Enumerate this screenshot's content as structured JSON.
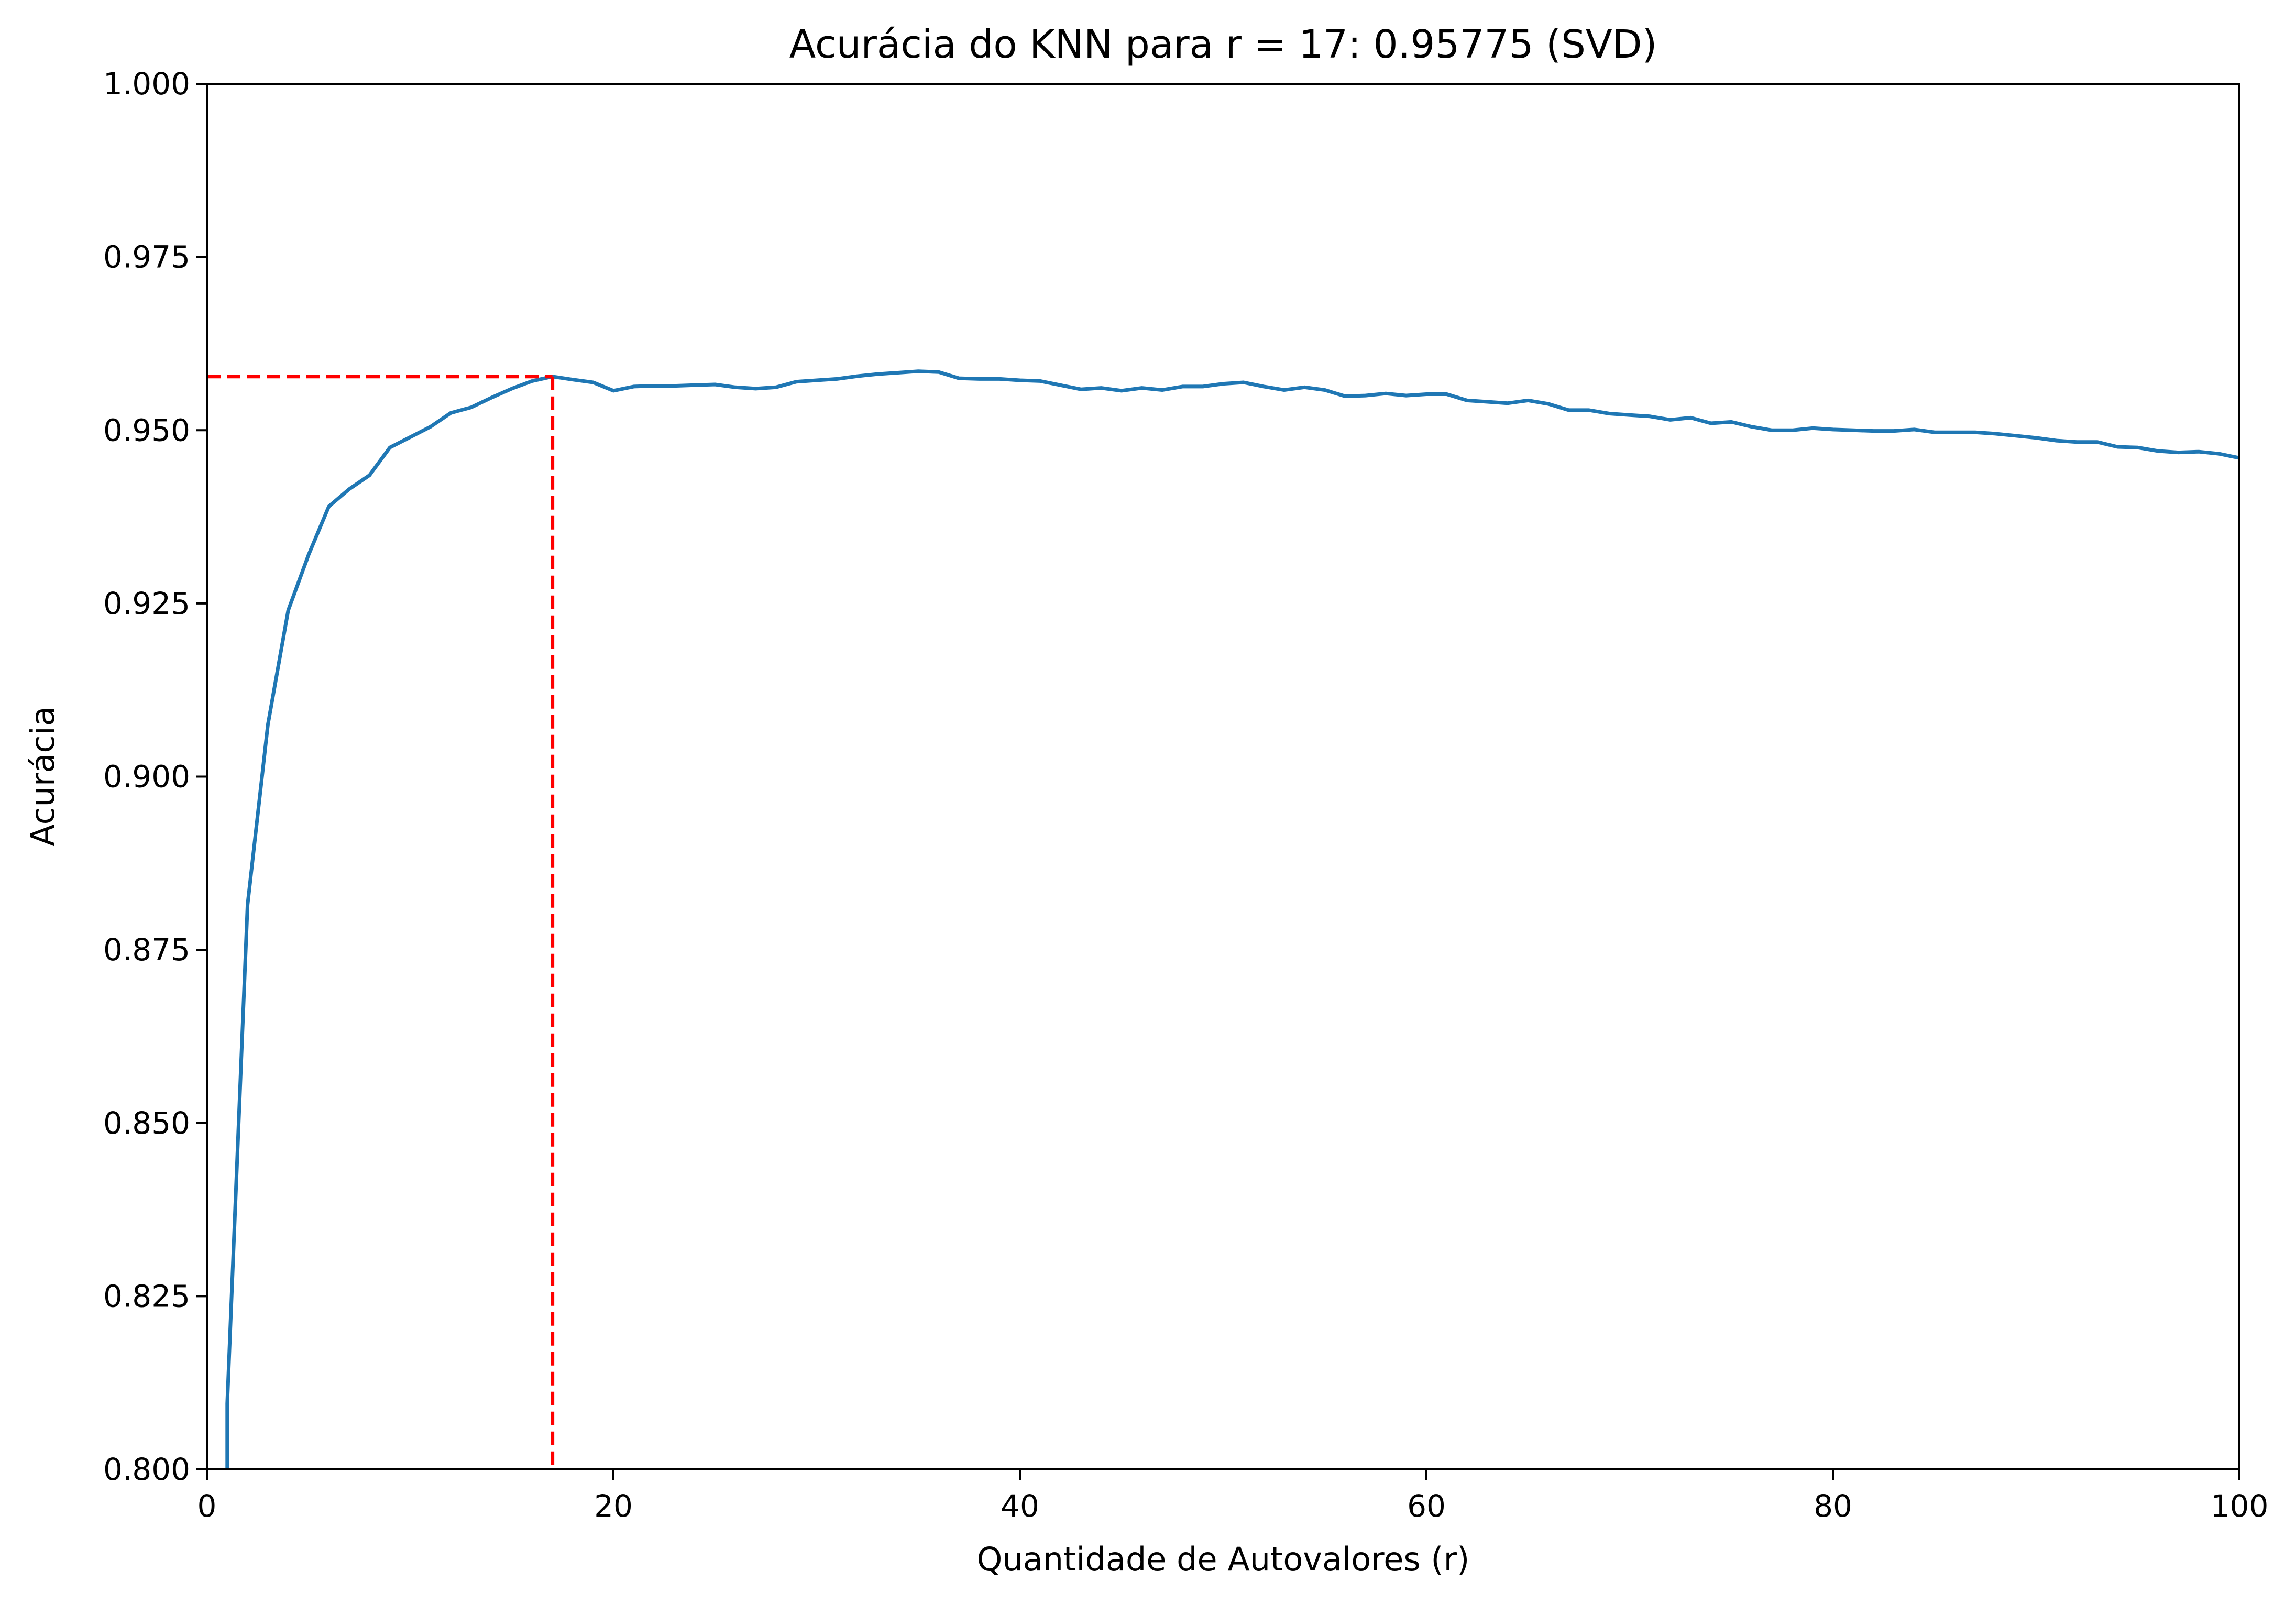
{
  "chart_data": {
    "type": "line",
    "title": "Acurácia do KNN para r = 17: 0.95775 (SVD)",
    "xlabel": "Quantidade de Autovalores (r)",
    "ylabel": "Acurácia",
    "xlim": [
      0,
      100
    ],
    "ylim": [
      0.8,
      1.0
    ],
    "xticks": [
      "0",
      "20",
      "40",
      "60",
      "80",
      "100"
    ],
    "yticks": [
      "0.800",
      "0.825",
      "0.850",
      "0.875",
      "0.900",
      "0.925",
      "0.950",
      "0.975",
      "1.000"
    ],
    "grid": false,
    "colors": {
      "series": "#1f77b4",
      "marker_line": "#ff0000"
    },
    "highlight": {
      "x": 17,
      "y": 0.95775,
      "style": "dashed"
    },
    "series": [
      {
        "x": [
          1,
          2,
          3,
          4,
          5,
          6,
          7,
          8,
          9,
          10,
          11,
          12,
          13,
          14,
          15,
          16,
          17,
          18,
          19,
          20,
          21,
          22,
          23,
          24,
          25,
          26,
          27,
          28,
          29,
          30,
          31,
          32,
          33,
          34,
          35,
          36,
          37,
          38,
          39,
          40,
          41,
          42,
          43,
          44,
          45,
          46,
          47,
          48,
          49,
          50,
          51,
          52,
          53,
          54,
          55,
          56,
          57,
          58,
          59,
          60,
          61,
          62,
          63,
          64,
          65,
          66,
          67,
          68,
          69,
          70,
          71,
          72,
          73,
          74,
          75,
          76,
          77,
          78,
          79,
          80,
          81,
          82,
          83,
          84,
          85,
          86,
          87,
          88,
          89,
          90,
          91,
          92,
          93,
          94,
          95,
          96,
          97,
          98,
          99,
          100
        ],
        "y": [
          0.8095,
          0.8815,
          0.9075,
          0.924,
          0.932,
          0.939,
          0.9415,
          0.9435,
          0.9475,
          0.949,
          0.9505,
          0.9525,
          0.9533,
          0.9547,
          0.956,
          0.9571,
          0.95775,
          0.9573,
          0.9569,
          0.9557,
          0.9563,
          0.9564,
          0.9564,
          0.9565,
          0.9566,
          0.9562,
          0.956,
          0.9562,
          0.957,
          0.9572,
          0.9574,
          0.9578,
          0.9581,
          0.9583,
          0.9585,
          0.9584,
          0.9575,
          0.9574,
          0.9574,
          0.9572,
          0.9571,
          0.9565,
          0.9559,
          0.9561,
          0.9557,
          0.9561,
          0.9558,
          0.9563,
          0.9563,
          0.9567,
          0.9569,
          0.9563,
          0.9558,
          0.9562,
          0.9558,
          0.9549,
          0.955,
          0.9553,
          0.955,
          0.9552,
          0.9552,
          0.9543,
          0.9541,
          0.9539,
          0.9543,
          0.9538,
          0.9529,
          0.9529,
          0.9524,
          0.9522,
          0.952,
          0.9515,
          0.9518,
          0.951,
          0.9512,
          0.9505,
          0.95,
          0.95,
          0.9503,
          0.9501,
          0.95,
          0.9499,
          0.9499,
          0.9501,
          0.9497,
          0.9497,
          0.9497,
          0.9495,
          0.9492,
          0.9489,
          0.9485,
          0.9483,
          0.9483,
          0.9476,
          0.9475,
          0.947,
          0.9468,
          0.9469,
          0.9466,
          0.946
        ]
      }
    ]
  }
}
